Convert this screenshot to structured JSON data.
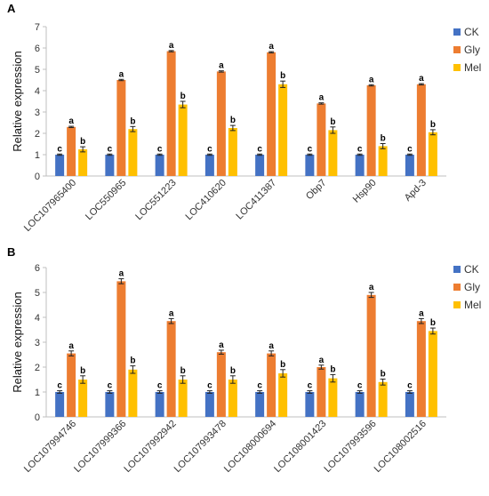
{
  "chart_data": [
    {
      "type": "bar",
      "panel_label": "A",
      "categories": [
        "LOC107965400",
        "LOC550965",
        "LOC551223",
        "LOC410620",
        "LOC411387",
        "Obp7",
        "Hsp90",
        "Apd-3"
      ],
      "series": [
        {
          "name": "CK",
          "values": [
            1,
            1,
            1,
            1,
            1,
            1,
            1,
            1
          ],
          "errors": [
            0.03,
            0.03,
            0.03,
            0.03,
            0.03,
            0.03,
            0.03,
            0.03
          ],
          "labels": [
            "c",
            "c",
            "c",
            "c",
            "c",
            "c",
            "c",
            "c"
          ],
          "color": "#4472C4"
        },
        {
          "name": "Gly",
          "values": [
            2.3,
            4.5,
            5.85,
            4.9,
            5.8,
            3.4,
            4.25,
            4.3
          ],
          "errors": [
            0.03,
            0.03,
            0.03,
            0.03,
            0.03,
            0.03,
            0.03,
            0.03
          ],
          "labels": [
            "a",
            "a",
            "a",
            "a",
            "a",
            "a",
            "a",
            "a"
          ],
          "color": "#ED7D31"
        },
        {
          "name": "Mel",
          "values": [
            1.25,
            2.2,
            3.35,
            2.25,
            4.3,
            2.15,
            1.4,
            2.05
          ],
          "errors": [
            0.12,
            0.12,
            0.15,
            0.12,
            0.15,
            0.15,
            0.12,
            0.12
          ],
          "labels": [
            "b",
            "b",
            "b",
            "b",
            "b",
            "b",
            "b",
            "b"
          ],
          "color": "#FFC000"
        }
      ],
      "ylabel": "Relative expression",
      "ylim": [
        0,
        7
      ],
      "yticks": [
        0,
        1,
        2,
        3,
        4,
        5,
        6,
        7
      ],
      "legend": "right"
    },
    {
      "type": "bar",
      "panel_label": "B",
      "categories": [
        "LOC107994746",
        "LOC107999366",
        "LOC107992942",
        "LOC107993478",
        "LOC108000694",
        "LOC108001423",
        "LOC107993596",
        "LOC108002516"
      ],
      "series": [
        {
          "name": "CK",
          "values": [
            1,
            1,
            1,
            1,
            1,
            1,
            1,
            1
          ],
          "errors": [
            0.05,
            0.05,
            0.05,
            0.05,
            0.05,
            0.05,
            0.05,
            0.05
          ],
          "labels": [
            "c",
            "c",
            "c",
            "c",
            "c",
            "c",
            "c",
            "c"
          ],
          "color": "#4472C4"
        },
        {
          "name": "Gly",
          "values": [
            2.55,
            5.45,
            3.85,
            2.6,
            2.55,
            2.0,
            4.9,
            3.85
          ],
          "errors": [
            0.1,
            0.1,
            0.1,
            0.08,
            0.1,
            0.08,
            0.1,
            0.1
          ],
          "labels": [
            "a",
            "a",
            "a",
            "a",
            "a",
            "a",
            "a",
            "a"
          ],
          "color": "#ED7D31"
        },
        {
          "name": "Mel",
          "values": [
            1.5,
            1.9,
            1.5,
            1.5,
            1.75,
            1.55,
            1.4,
            3.45
          ],
          "errors": [
            0.15,
            0.15,
            0.15,
            0.15,
            0.15,
            0.15,
            0.12,
            0.12
          ],
          "labels": [
            "b",
            "b",
            "b",
            "b",
            "b",
            "b",
            "b",
            "b"
          ],
          "color": "#FFC000"
        }
      ],
      "ylabel": "Relative expression",
      "ylim": [
        0,
        6
      ],
      "yticks": [
        0,
        1,
        2,
        3,
        4,
        5,
        6
      ],
      "legend": "right"
    }
  ]
}
